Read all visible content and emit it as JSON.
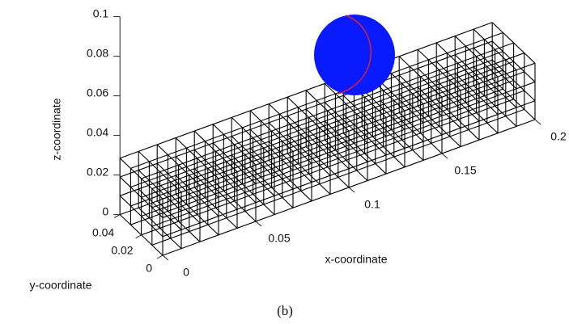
{
  "chart_data": {
    "type": "mesh3d",
    "caption": "(b)",
    "xlabel": "x-coordinate",
    "ylabel": "y-coordinate",
    "zlabel": "z-coordinate",
    "xlim": [
      0,
      0.2
    ],
    "ylim": [
      0,
      0.04
    ],
    "zlim": [
      0,
      0.1
    ],
    "xticks": [
      0,
      0.05,
      0.1,
      0.15,
      0.2
    ],
    "yticks": [
      0,
      0.02,
      0.04
    ],
    "zticks": [
      0,
      0.02,
      0.04,
      0.06,
      0.08,
      0.1
    ],
    "mesh_color": "#000000",
    "sphere_color": "#0a1aff",
    "sphere_edge_color": "#e0202a"
  }
}
